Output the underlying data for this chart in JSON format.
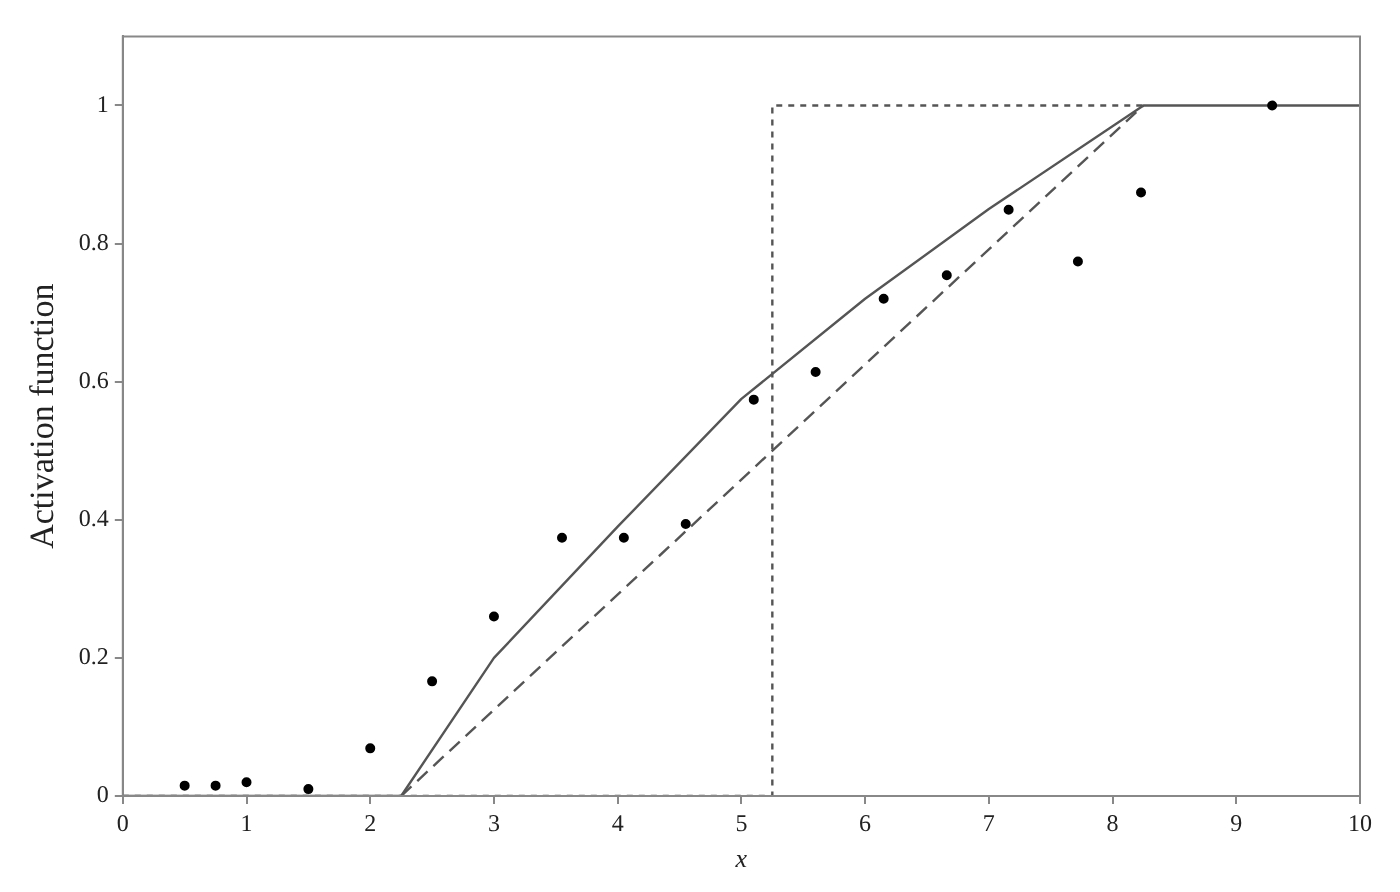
{
  "chart_data": {
    "type": "line",
    "xlabel": "x",
    "ylabel": "Activation function",
    "xlim": [
      0,
      10
    ],
    "ylim": [
      0,
      1.1
    ],
    "xticks": [
      0,
      1,
      2,
      3,
      4,
      5,
      6,
      7,
      8,
      9,
      10
    ],
    "yticks": [
      0,
      0.2,
      0.4,
      0.6,
      0.8,
      1
    ],
    "grid": false,
    "legend": false,
    "series": [
      {
        "type": "scatter",
        "color": "#000000",
        "marker": "circle",
        "x": [
          0.5,
          0.75,
          1,
          1.5,
          2,
          2.5,
          3,
          3.55,
          4.05,
          4.55,
          5.1,
          5.6,
          6.15,
          6.66,
          7.16,
          7.72,
          8.23,
          9.29
        ],
        "values": [
          0.015,
          0.015,
          0.02,
          0.01,
          0.069,
          0.166,
          0.26,
          0.374,
          0.374,
          0.394,
          0.574,
          0.614,
          0.72,
          0.754,
          0.849,
          0.774,
          0.874,
          1.0
        ]
      },
      {
        "color": "#555555",
        "line_style": "solid",
        "marker": "none",
        "x": [
          0,
          2.25,
          3,
          4,
          5,
          6,
          7,
          8.25,
          10
        ],
        "values": [
          0,
          0,
          0.2,
          0.39,
          0.575,
          0.72,
          0.85,
          1,
          1
        ]
      },
      {
        "color": "#555555",
        "line_style": "dashed",
        "marker": "none",
        "x": [
          2.25,
          8.25
        ],
        "values": [
          0,
          1
        ]
      },
      {
        "color": "#555555",
        "line_style": "dotted",
        "marker": "none",
        "x": [
          0,
          5.25,
          5.25,
          8.25
        ],
        "values": [
          0,
          0,
          1,
          1
        ]
      }
    ]
  }
}
